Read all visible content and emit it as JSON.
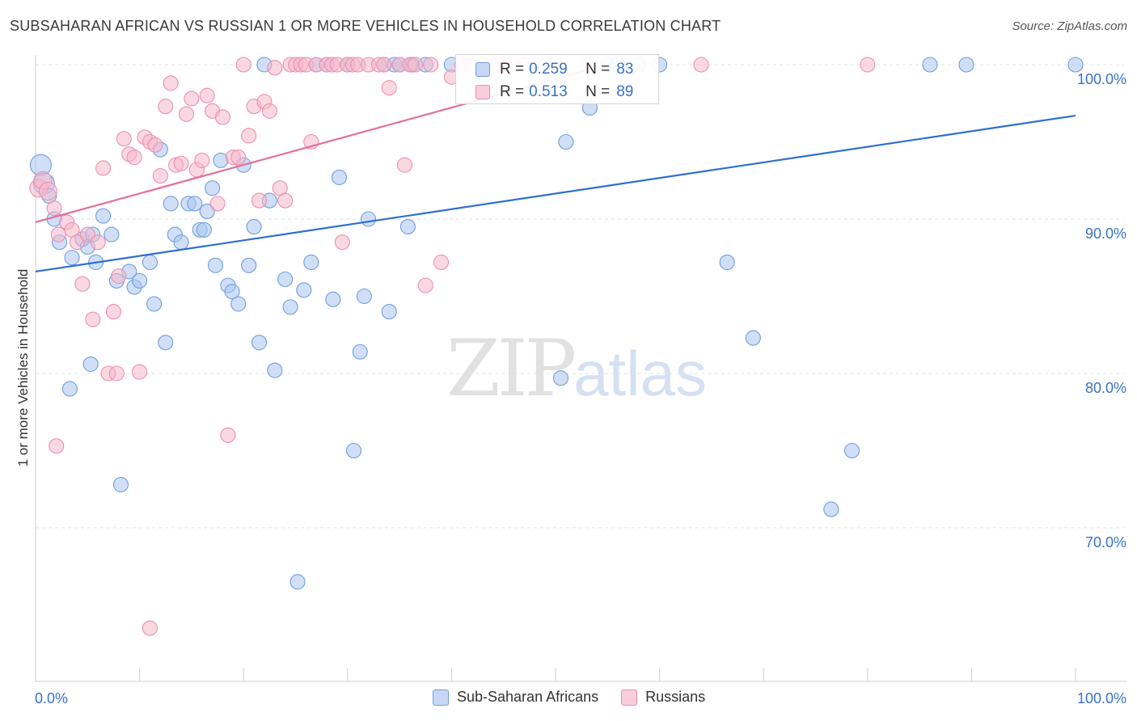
{
  "header": {
    "title": "SUBSAHARAN AFRICAN VS RUSSIAN 1 OR MORE VEHICLES IN HOUSEHOLD CORRELATION CHART",
    "source": "Source: ZipAtlas.com"
  },
  "watermark": {
    "zip": "ZIP",
    "atlas": "atlas"
  },
  "stats": {
    "r_label": "R =",
    "n_label": "N =",
    "rows": [
      {
        "r": "0.259",
        "n": "83",
        "color": "#a9c4ef"
      },
      {
        "r": "0.513",
        "n": "89",
        "color": "#f6b8cb"
      }
    ]
  },
  "chart_data": {
    "type": "scatter",
    "ylabel": "1 or more Vehicles in Household",
    "xlim": [
      0,
      100
    ],
    "ylim": [
      60,
      100
    ],
    "x_tick_labels": [
      "0.0%",
      "100.0%"
    ],
    "y_ticks": [
      {
        "value": 100,
        "label": "100.0%"
      },
      {
        "value": 90,
        "label": "90.0%"
      },
      {
        "value": 80,
        "label": "80.0%"
      },
      {
        "value": 70,
        "label": "70.0%"
      }
    ],
    "grid": "horizontal dashed",
    "series": [
      {
        "name": "Sub-Saharan Africans",
        "fill": "#a9c4ef",
        "stroke": "#6f9ee0",
        "trend": {
          "x0": 0,
          "y0": 86.6,
          "x1": 100,
          "y1": 96.7,
          "color": "#2f6fcf"
        },
        "points": [
          [
            0.5,
            93.5
          ],
          [
            0.8,
            92.3
          ],
          [
            1.3,
            91.5
          ],
          [
            1.8,
            90.0
          ],
          [
            2.3,
            88.5
          ],
          [
            3.5,
            87.5
          ],
          [
            4.5,
            88.7
          ],
          [
            5.0,
            88.2
          ],
          [
            5.5,
            89.0
          ],
          [
            5.8,
            87.2
          ],
          [
            6.5,
            90.2
          ],
          [
            7.3,
            89.0
          ],
          [
            7.8,
            86.0
          ],
          [
            9.0,
            86.6
          ],
          [
            9.5,
            85.6
          ],
          [
            10.0,
            86.0
          ],
          [
            11.0,
            87.2
          ],
          [
            11.4,
            84.5
          ],
          [
            12.0,
            94.5
          ],
          [
            12.5,
            82.0
          ],
          [
            13.0,
            91.0
          ],
          [
            13.4,
            89.0
          ],
          [
            14.0,
            88.5
          ],
          [
            14.7,
            91.0
          ],
          [
            15.3,
            91.0
          ],
          [
            15.8,
            89.3
          ],
          [
            16.2,
            89.3
          ],
          [
            16.5,
            90.5
          ],
          [
            17.0,
            92.0
          ],
          [
            17.3,
            87.0
          ],
          [
            17.8,
            93.8
          ],
          [
            18.5,
            85.7
          ],
          [
            18.9,
            85.3
          ],
          [
            19.5,
            84.5
          ],
          [
            20.0,
            93.5
          ],
          [
            20.5,
            87.0
          ],
          [
            21.0,
            89.5
          ],
          [
            21.5,
            82.0
          ],
          [
            22.0,
            100.0
          ],
          [
            22.5,
            91.2
          ],
          [
            23.0,
            80.2
          ],
          [
            24.0,
            86.1
          ],
          [
            24.5,
            84.3
          ],
          [
            25.2,
            66.5
          ],
          [
            25.8,
            85.4
          ],
          [
            26.5,
            87.2
          ],
          [
            27.0,
            100.0
          ],
          [
            28.0,
            100.0
          ],
          [
            28.6,
            84.8
          ],
          [
            29.2,
            92.7
          ],
          [
            30.0,
            100.0
          ],
          [
            30.6,
            75.0
          ],
          [
            31.2,
            81.4
          ],
          [
            31.6,
            85.0
          ],
          [
            32.0,
            90.0
          ],
          [
            33.5,
            100.0
          ],
          [
            34.0,
            84.0
          ],
          [
            34.5,
            100.0
          ],
          [
            35.0,
            100.0
          ],
          [
            35.8,
            89.5
          ],
          [
            36.2,
            100.0
          ],
          [
            37.5,
            100.0
          ],
          [
            40.0,
            100.0
          ],
          [
            44.5,
            100.0
          ],
          [
            47.0,
            100.0
          ],
          [
            48.0,
            100.0
          ],
          [
            50.5,
            79.7
          ],
          [
            51.0,
            95.0
          ],
          [
            53.3,
            97.2
          ],
          [
            55.0,
            100.0
          ],
          [
            56.0,
            100.0
          ],
          [
            58.0,
            100.0
          ],
          [
            60.0,
            100.0
          ],
          [
            66.5,
            87.2
          ],
          [
            69.0,
            82.3
          ],
          [
            76.5,
            71.2
          ],
          [
            78.5,
            75.0
          ],
          [
            86.0,
            100.0
          ],
          [
            89.5,
            100.0
          ],
          [
            100.0,
            100.0
          ],
          [
            5.3,
            80.6
          ],
          [
            8.2,
            72.8
          ],
          [
            3.3,
            79.0
          ]
        ]
      },
      {
        "name": "Russians",
        "fill": "#f6b8cb",
        "stroke": "#ec8fae",
        "trend": {
          "x0": 0,
          "y0": 89.8,
          "x1": 55,
          "y1": 100.0,
          "color": "#e0709a"
        },
        "points": [
          [
            0.3,
            92.0
          ],
          [
            0.7,
            92.5
          ],
          [
            1.2,
            91.8
          ],
          [
            1.8,
            90.7
          ],
          [
            2.2,
            89.0
          ],
          [
            3.0,
            89.8
          ],
          [
            3.5,
            89.3
          ],
          [
            4.0,
            88.5
          ],
          [
            4.5,
            85.8
          ],
          [
            5.0,
            89.0
          ],
          [
            5.5,
            83.5
          ],
          [
            6.0,
            88.5
          ],
          [
            6.5,
            93.3
          ],
          [
            7.0,
            80.0
          ],
          [
            7.5,
            84.0
          ],
          [
            8.0,
            86.3
          ],
          [
            8.5,
            95.2
          ],
          [
            9.0,
            94.2
          ],
          [
            9.5,
            94.0
          ],
          [
            10.0,
            80.1
          ],
          [
            10.5,
            95.3
          ],
          [
            11.0,
            95.0
          ],
          [
            11.5,
            94.8
          ],
          [
            12.0,
            92.8
          ],
          [
            12.5,
            97.3
          ],
          [
            13.0,
            98.8
          ],
          [
            13.5,
            93.5
          ],
          [
            14.0,
            93.6
          ],
          [
            14.5,
            96.8
          ],
          [
            15.0,
            97.8
          ],
          [
            15.5,
            93.2
          ],
          [
            16.0,
            93.8
          ],
          [
            16.5,
            98.0
          ],
          [
            17.0,
            97.0
          ],
          [
            17.5,
            91.0
          ],
          [
            18.0,
            96.6
          ],
          [
            18.5,
            76.0
          ],
          [
            19.0,
            94.0
          ],
          [
            19.5,
            94.0
          ],
          [
            20.0,
            100.0
          ],
          [
            20.5,
            95.4
          ],
          [
            21.0,
            97.3
          ],
          [
            21.5,
            91.2
          ],
          [
            22.0,
            97.6
          ],
          [
            22.5,
            97.0
          ],
          [
            23.0,
            99.8
          ],
          [
            23.5,
            92.0
          ],
          [
            24.0,
            91.2
          ],
          [
            24.5,
            100.0
          ],
          [
            25.0,
            100.0
          ],
          [
            25.5,
            100.0
          ],
          [
            26.0,
            100.0
          ],
          [
            26.5,
            95.0
          ],
          [
            27.0,
            100.0
          ],
          [
            28.0,
            100.0
          ],
          [
            28.5,
            100.0
          ],
          [
            29.0,
            100.0
          ],
          [
            29.5,
            88.5
          ],
          [
            30.0,
            100.0
          ],
          [
            30.5,
            100.0
          ],
          [
            31.0,
            100.0
          ],
          [
            32.0,
            100.0
          ],
          [
            33.0,
            100.0
          ],
          [
            33.5,
            100.0
          ],
          [
            34.0,
            98.5
          ],
          [
            35.0,
            100.0
          ],
          [
            35.5,
            93.5
          ],
          [
            36.0,
            100.0
          ],
          [
            36.5,
            100.0
          ],
          [
            37.5,
            85.7
          ],
          [
            38.0,
            100.0
          ],
          [
            39.0,
            87.2
          ],
          [
            40.0,
            99.2
          ],
          [
            41.0,
            100.0
          ],
          [
            42.0,
            100.0
          ],
          [
            43.0,
            100.0
          ],
          [
            44.0,
            100.0
          ],
          [
            45.0,
            100.0
          ],
          [
            46.0,
            100.0
          ],
          [
            47.0,
            100.0
          ],
          [
            48.0,
            100.0
          ],
          [
            49.0,
            100.0
          ],
          [
            50.0,
            100.0
          ],
          [
            53.0,
            100.0
          ],
          [
            64.0,
            100.0
          ],
          [
            80.0,
            100.0
          ],
          [
            11.0,
            63.5
          ],
          [
            7.8,
            80.0
          ],
          [
            2.0,
            75.3
          ]
        ]
      }
    ]
  }
}
